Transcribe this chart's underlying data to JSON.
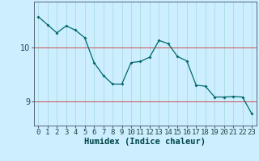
{
  "x": [
    0,
    1,
    2,
    3,
    4,
    5,
    6,
    7,
    8,
    9,
    10,
    11,
    12,
    13,
    14,
    15,
    16,
    17,
    18,
    19,
    20,
    21,
    22,
    23
  ],
  "y": [
    10.57,
    10.42,
    10.27,
    10.4,
    10.32,
    10.18,
    9.72,
    9.48,
    9.32,
    9.32,
    9.72,
    9.74,
    9.82,
    10.13,
    10.07,
    9.83,
    9.75,
    9.3,
    9.28,
    9.08,
    9.08,
    9.09,
    9.08,
    8.77
  ],
  "line_color": "#006868",
  "marker_color": "#006868",
  "bg_color": "#cceeff",
  "grid_color": "#aadddd",
  "hline_color": "#cc3333",
  "xlabel": "Humidex (Indice chaleur)",
  "yticks": [
    9,
    10
  ],
  "ylim": [
    8.55,
    10.85
  ],
  "xlim": [
    -0.5,
    23.5
  ],
  "label_fontsize": 7.5,
  "tick_fontsize": 6.5
}
